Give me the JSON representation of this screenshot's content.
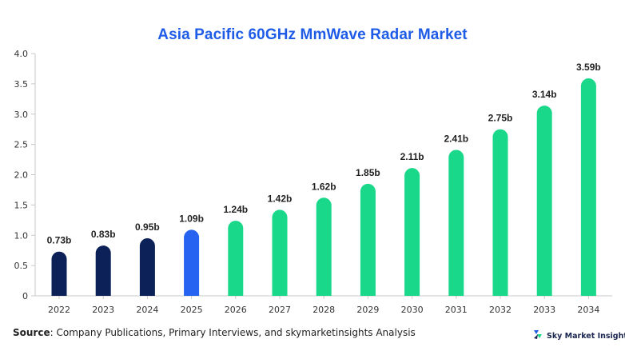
{
  "title": "Asia Pacific 60GHz MmWave Radar Market",
  "source": {
    "label": "Source",
    "text": ": Company Publications, Primary Interviews, and skymarketinsights Analysis"
  },
  "brand": {
    "name": "Sky Market Insights",
    "logo_icon": "sky-market-insights-logo",
    "colors": [
      "#1e5ce8",
      "#19d889",
      "#1a2550"
    ]
  },
  "chart_data": {
    "type": "bar",
    "categories": [
      "2022",
      "2023",
      "2024",
      "2025",
      "2026",
      "2027",
      "2028",
      "2029",
      "2030",
      "2031",
      "2032",
      "2033",
      "2034"
    ],
    "values": [
      0.73,
      0.83,
      0.95,
      1.09,
      1.24,
      1.42,
      1.62,
      1.85,
      2.11,
      2.41,
      2.75,
      3.14,
      3.59
    ],
    "data_labels": [
      "0.73b",
      "0.83b",
      "0.95b",
      "1.09b",
      "1.24b",
      "1.42b",
      "1.62b",
      "1.85b",
      "2.11b",
      "2.41b",
      "2.75b",
      "3.14b",
      "3.59b"
    ],
    "bar_colors": [
      "#0c2157",
      "#0c2157",
      "#0c2157",
      "#2563f0",
      "#19d889",
      "#19d889",
      "#19d889",
      "#19d889",
      "#19d889",
      "#19d889",
      "#19d889",
      "#19d889",
      "#19d889"
    ],
    "ylim": [
      0,
      4.0
    ],
    "yticks": [
      "0",
      "0.5",
      "1.0",
      "1.5",
      "2.0",
      "2.5",
      "3.0",
      "3.5",
      "4.0"
    ],
    "grid": false,
    "legend": "none",
    "title": "Asia Pacific 60GHz MmWave Radar Market",
    "xlabel": "",
    "ylabel": ""
  }
}
